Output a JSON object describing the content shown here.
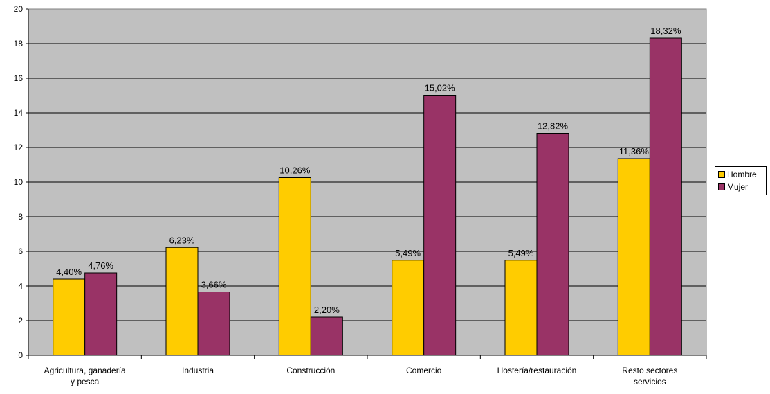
{
  "chart_data": {
    "type": "bar",
    "categories": [
      [
        "Agricultura, ganadería",
        "y pesca"
      ],
      [
        "Industria"
      ],
      [
        "Construcción"
      ],
      [
        "Comercio"
      ],
      [
        "Hostería/restauración"
      ],
      [
        "Resto sectores",
        "servicios"
      ]
    ],
    "series": [
      {
        "name": "Hombre",
        "color": "#FFCC00",
        "values": [
          4.4,
          6.23,
          10.26,
          5.49,
          5.49,
          11.36
        ],
        "labels": [
          "4,40%",
          "6,23%",
          "10,26%",
          "5,49%",
          "5,49%",
          "11,36%"
        ]
      },
      {
        "name": "Mujer",
        "color": "#993366",
        "values": [
          4.76,
          3.66,
          2.2,
          15.02,
          12.82,
          18.32
        ],
        "labels": [
          "4,76%",
          "3,66%",
          "2,20%",
          "15,02%",
          "12,82%",
          "18,32%"
        ]
      }
    ],
    "ylim": [
      0,
      20
    ],
    "yticks": [
      0,
      2,
      4,
      6,
      8,
      10,
      12,
      14,
      16,
      18,
      20
    ],
    "grid": true,
    "plot_background": "#C0C0C0",
    "legend_position": "right",
    "title": "",
    "xlabel": "",
    "ylabel": ""
  }
}
